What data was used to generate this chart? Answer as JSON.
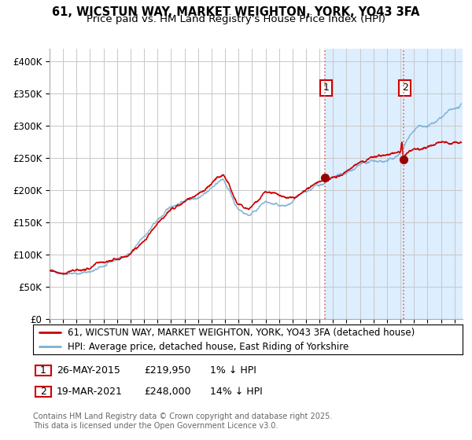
{
  "title_line1": "61, WICSTUN WAY, MARKET WEIGHTON, YORK, YO43 3FA",
  "title_line2": "Price paid vs. HM Land Registry's House Price Index (HPI)",
  "ylim": [
    0,
    420000
  ],
  "xlim_start": 1995.0,
  "xlim_end": 2025.6,
  "yticks": [
    0,
    50000,
    100000,
    150000,
    200000,
    250000,
    300000,
    350000,
    400000
  ],
  "ytick_labels": [
    "£0",
    "£50K",
    "£100K",
    "£150K",
    "£200K",
    "£250K",
    "£300K",
    "£350K",
    "£400K"
  ],
  "background_color": "#ffffff",
  "shaded_region_color": "#ddeeff",
  "grid_color": "#c8c8c8",
  "hpi_line_color": "#7ab0d4",
  "price_line_color": "#cc0000",
  "point1_x": 2015.38,
  "point1_y": 219950,
  "point2_x": 2021.21,
  "point2_y": 248000,
  "vline1_color": "#cc0000",
  "vline2_color": "#cc0000",
  "annotation1_label": "1",
  "annotation2_label": "2",
  "legend_label1": "61, WICSTUN WAY, MARKET WEIGHTON, YORK, YO43 3FA (detached house)",
  "legend_label2": "HPI: Average price, detached house, East Riding of Yorkshire",
  "table_row1": [
    "1",
    "26-MAY-2015",
    "£219,950",
    "1% ↓ HPI"
  ],
  "table_row2": [
    "2",
    "19-MAR-2021",
    "£248,000",
    "14% ↓ HPI"
  ],
  "footer_text": "Contains HM Land Registry data © Crown copyright and database right 2025.\nThis data is licensed under the Open Government Licence v3.0.",
  "title_fontsize": 10.5,
  "subtitle_fontsize": 9.5,
  "tick_fontsize": 8.5,
  "legend_fontsize": 8.5,
  "annotation_fontsize": 9
}
